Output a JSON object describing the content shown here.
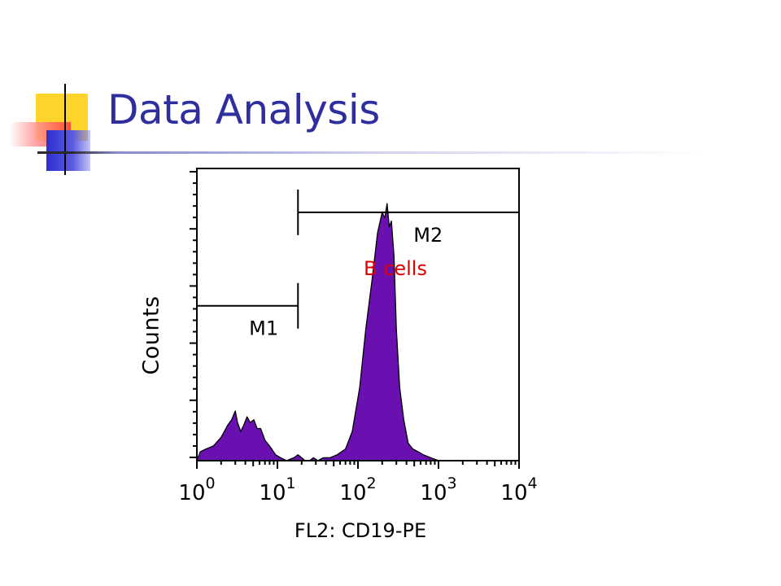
{
  "slide": {
    "title": "Data Analysis"
  },
  "colors": {
    "title": "#2e2e9e",
    "fill": "#6a0fb0",
    "annotation": "#e00000",
    "deco_yellow": "#ffd21f",
    "deco_red": "#ff4b4b",
    "deco_blue": "#3b3bd6"
  },
  "chart_data": {
    "type": "area",
    "title": "",
    "xlabel": "FL2: CD19-PE",
    "ylabel": "Counts",
    "x_scale": "log",
    "xlim": [
      1,
      10000
    ],
    "ylim": [
      0,
      100
    ],
    "x_tick_labels": [
      {
        "value": 1,
        "label": "10",
        "exp": "0"
      },
      {
        "value": 10,
        "label": "10",
        "exp": "1"
      },
      {
        "value": 100,
        "label": "10",
        "exp": "2"
      },
      {
        "value": 1000,
        "label": "10",
        "exp": "3"
      },
      {
        "value": 10000,
        "label": "10",
        "exp": "4"
      }
    ],
    "annotation": "B cells",
    "gates": [
      {
        "name": "M1",
        "from": 1,
        "to": 18,
        "level": 53
      },
      {
        "name": "M2",
        "from": 18,
        "to": 10000,
        "level": 85
      }
    ],
    "series": [
      {
        "x": [
          1,
          1.1,
          1.3,
          1.6,
          2.0,
          2.4,
          2.7,
          3.0,
          3.2,
          3.5,
          3.8,
          4.2,
          4.6,
          5.1,
          5.6,
          6.2,
          7.0,
          8.0,
          9.5,
          11,
          13,
          16,
          18,
          20,
          22,
          25,
          28,
          32,
          37,
          45,
          55,
          70,
          85,
          105,
          125,
          150,
          175,
          200,
          215,
          230,
          245,
          260,
          280,
          300,
          330,
          370,
          420,
          480,
          560,
          650,
          800,
          1000,
          1500,
          3000,
          10000
        ],
        "values": [
          0,
          3,
          4,
          5,
          8,
          12,
          14,
          17,
          13,
          10,
          12,
          15,
          13,
          14,
          11,
          11,
          7,
          5,
          2,
          1,
          0,
          1,
          2,
          1,
          0,
          0,
          1,
          0,
          1,
          1,
          2,
          4,
          10,
          25,
          45,
          62,
          78,
          85,
          83,
          88,
          80,
          82,
          70,
          45,
          25,
          14,
          6,
          4,
          3,
          2,
          1,
          0,
          0,
          0,
          0
        ]
      }
    ]
  }
}
